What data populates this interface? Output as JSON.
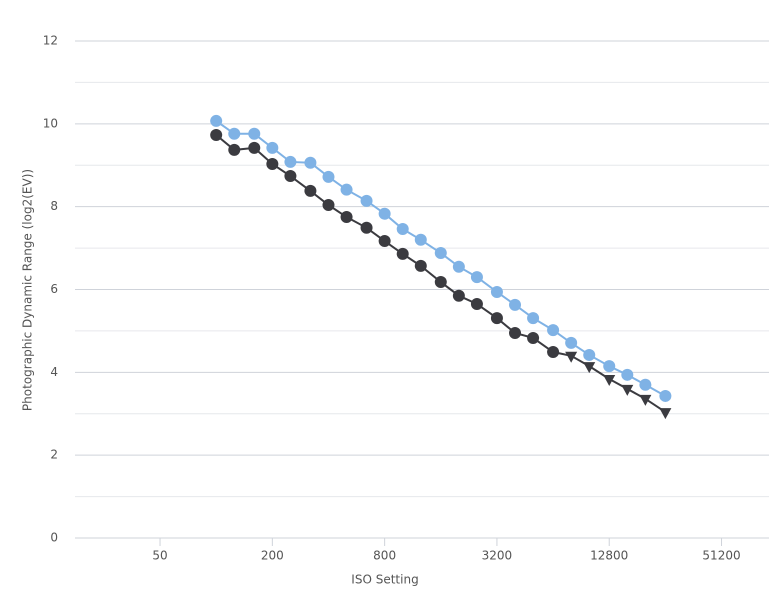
{
  "chart_data": {
    "type": "line",
    "x_label": "ISO Setting",
    "y_label": "Photographic Dynamic Range (log2(EV))",
    "x_scale": "log",
    "xlim": [
      17.5,
      92000
    ],
    "xticks": [
      50,
      200,
      800,
      3200,
      12800,
      51200
    ],
    "ylim": [
      0,
      12
    ],
    "yticks": [
      0,
      2,
      4,
      6,
      8,
      10,
      12
    ],
    "ygrid_minor": [
      1,
      3,
      5,
      7,
      9,
      11
    ],
    "grid": true,
    "x": [
      100,
      125,
      160,
      200,
      250,
      320,
      400,
      500,
      640,
      800,
      1000,
      1250,
      1600,
      2000,
      2500,
      3200,
      4000,
      5000,
      6400,
      8000,
      10000,
      12800,
      16000,
      20000,
      25600
    ],
    "series": [
      {
        "color": "#7fb2e5",
        "values": [
          10.07,
          9.76,
          9.76,
          9.42,
          9.08,
          9.06,
          8.72,
          8.41,
          8.14,
          7.83,
          7.46,
          7.2,
          6.88,
          6.55,
          6.3,
          5.94,
          5.63,
          5.31,
          5.02,
          4.71,
          4.42,
          4.15,
          3.94,
          3.7,
          3.43
        ],
        "markers": [
          "circle",
          "circle",
          "circle",
          "circle",
          "circle",
          "circle",
          "circle",
          "circle",
          "circle",
          "circle",
          "circle",
          "circle",
          "circle",
          "circle",
          "circle",
          "circle",
          "circle",
          "circle",
          "circle",
          "circle",
          "circle",
          "circle",
          "circle",
          "circle",
          "circle"
        ]
      },
      {
        "color": "#3b3b40",
        "values": [
          9.73,
          9.37,
          9.42,
          9.03,
          8.74,
          8.38,
          8.04,
          7.75,
          7.49,
          7.17,
          6.86,
          6.57,
          6.18,
          5.85,
          5.65,
          5.31,
          4.95,
          4.83,
          4.49,
          4.4,
          4.15,
          3.84,
          3.6,
          3.36,
          3.04
        ],
        "markers": [
          "circle",
          "circle",
          "circle",
          "circle",
          "circle",
          "circle",
          "circle",
          "circle",
          "circle",
          "circle",
          "circle",
          "circle",
          "circle",
          "circle",
          "circle",
          "circle",
          "circle",
          "circle",
          "circle",
          "triangle",
          "triangle",
          "triangle",
          "triangle",
          "triangle",
          "triangle"
        ]
      }
    ]
  }
}
